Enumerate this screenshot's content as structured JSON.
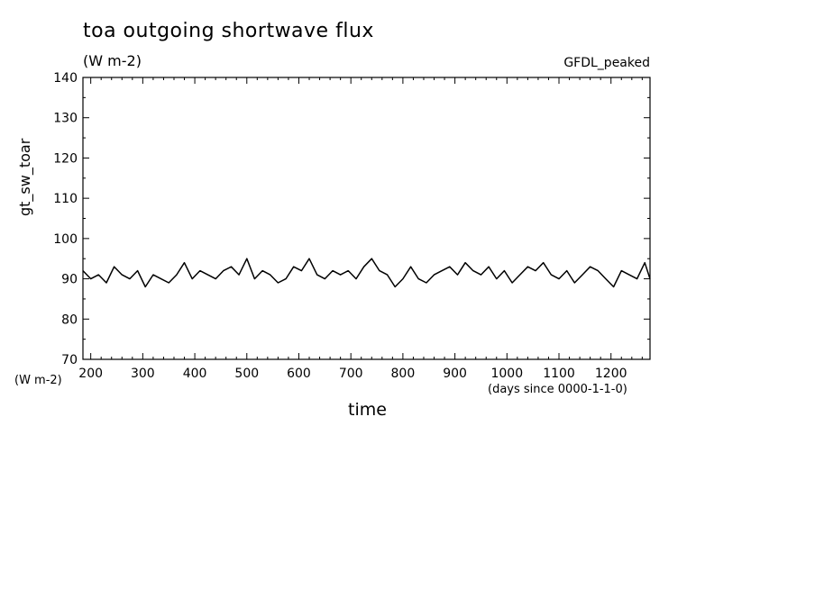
{
  "chart_data": {
    "type": "line",
    "title": "toa outgoing shortwave flux",
    "subtitle": "(W m-2)",
    "dataset_label": "GFDL_peaked",
    "xlabel": "time",
    "ylabel": "gt_sw_toar",
    "y_units": "(W m-2)",
    "x_units": "(days since 0000-1-1-0)",
    "xlim": [
      185,
      1275
    ],
    "ylim": [
      70,
      140
    ],
    "x_ticks": [
      200,
      300,
      400,
      500,
      600,
      700,
      800,
      900,
      1000,
      1100,
      1200
    ],
    "x_tick_labels": [
      "200",
      "300",
      "400",
      "500",
      "600",
      "700",
      "800",
      "900",
      "1000",
      "1100",
      "1200"
    ],
    "y_ticks": [
      70,
      80,
      90,
      100,
      110,
      120,
      130,
      140
    ],
    "y_tick_labels": [
      "70",
      "80",
      "90",
      "100",
      "110",
      "120",
      "130",
      "140"
    ],
    "grid": false,
    "series": [
      {
        "color": "#000000",
        "x": [
          185,
          200,
          215,
          230,
          245,
          260,
          275,
          290,
          305,
          320,
          335,
          350,
          365,
          380,
          395,
          410,
          425,
          440,
          455,
          470,
          485,
          500,
          515,
          530,
          545,
          560,
          575,
          590,
          605,
          620,
          635,
          650,
          665,
          680,
          695,
          710,
          725,
          740,
          755,
          770,
          785,
          800,
          815,
          830,
          845,
          860,
          875,
          890,
          905,
          920,
          935,
          950,
          965,
          980,
          995,
          1010,
          1025,
          1040,
          1055,
          1070,
          1085,
          1100,
          1115,
          1130,
          1145,
          1160,
          1175,
          1190,
          1205,
          1220,
          1235,
          1250,
          1265,
          1275
        ],
        "y": [
          92,
          90,
          91,
          89,
          93,
          91,
          90,
          92,
          88,
          91,
          90,
          89,
          91,
          94,
          90,
          92,
          91,
          90,
          92,
          93,
          91,
          95,
          90,
          92,
          91,
          89,
          90,
          93,
          92,
          95,
          91,
          90,
          92,
          91,
          92,
          90,
          93,
          95,
          92,
          91,
          88,
          90,
          93,
          90,
          89,
          91,
          92,
          93,
          91,
          94,
          92,
          91,
          93,
          90,
          92,
          89,
          91,
          93,
          92,
          94,
          91,
          90,
          92,
          89,
          91,
          93,
          92,
          90,
          88,
          92,
          91,
          90,
          94,
          90
        ]
      }
    ]
  }
}
